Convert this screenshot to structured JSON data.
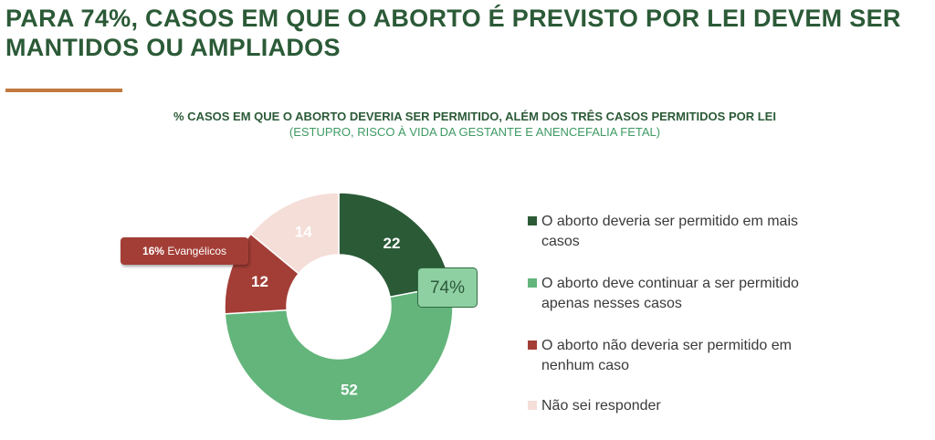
{
  "headline": "PARA 74%, CASOS EM QUE O ABORTO É PREVISTO POR LEI DEVEM SER MANTIDOS OU AMPLIADOS",
  "colors": {
    "dark_green": "#2b5a37",
    "light_green": "#63b57b",
    "red": "#a33e36",
    "peach": "#f5ded8",
    "accent": "#c17a3e"
  },
  "chart_data": {
    "type": "pie",
    "variant": "donut",
    "title": "% CASOS EM QUE O ABORTO DEVERIA SER PERMITIDO, ALÉM DOS TRÊS CASOS PERMITIDOS POR LEI",
    "subtitle": "(ESTUPRO, RISCO À VIDA DA GESTANTE E ANENCEFALIA FETAL)",
    "slices": [
      {
        "label": "O aborto deveria ser permitido em mais casos",
        "value": 22,
        "color": "#2b5a37",
        "text_color": "#ffffff"
      },
      {
        "label": "O aborto deve continuar a ser permitido apenas nesses casos",
        "value": 52,
        "color": "#63b57b",
        "text_color": "#ffffff"
      },
      {
        "label": "O aborto não deveria ser permitido em nenhum caso",
        "value": 12,
        "color": "#a33e36",
        "text_color": "#ffffff"
      },
      {
        "label": "Não sei responder",
        "value": 14,
        "color": "#f5ded8",
        "text_color": "#ffffff"
      }
    ],
    "legend_position": "right",
    "annotations": {
      "total": "74%",
      "evangelicos_value": "16%",
      "evangelicos_label": "Evangélicos"
    }
  }
}
